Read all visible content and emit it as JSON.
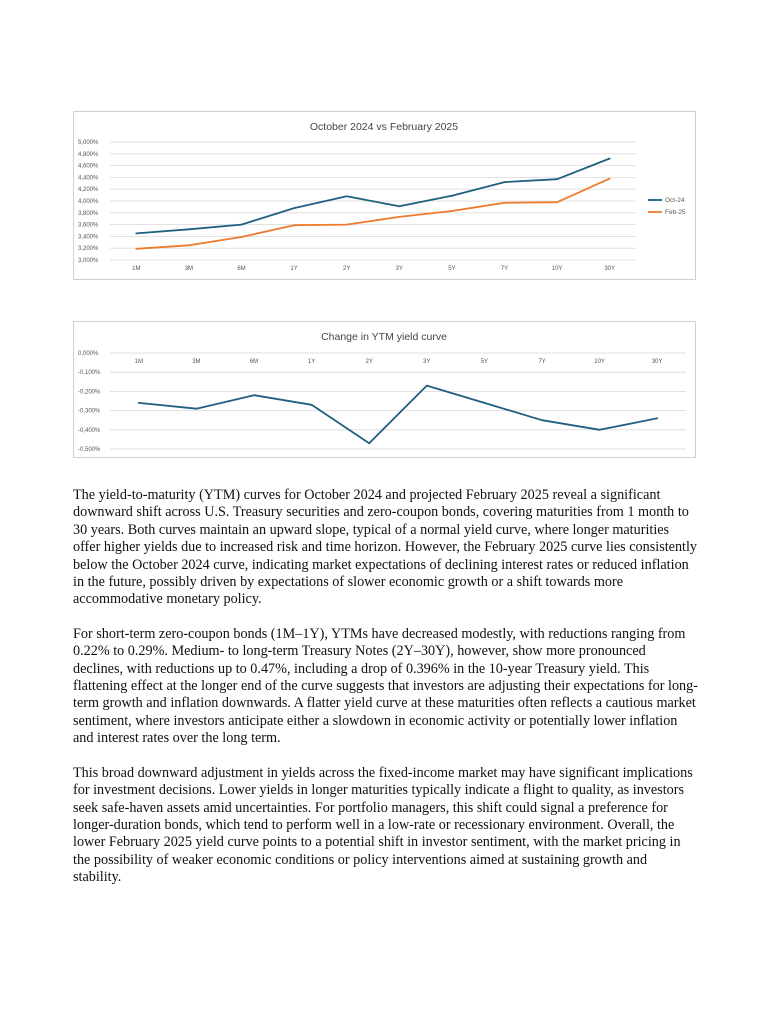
{
  "chart_data": [
    {
      "type": "line",
      "title": "October 2024 vs February 2025",
      "categories": [
        "1M",
        "3M",
        "6M",
        "1Y",
        "2Y",
        "3Y",
        "5Y",
        "7Y",
        "10Y",
        "30Y"
      ],
      "series": [
        {
          "name": "Oct-24",
          "color": "#1f5f7f",
          "values": [
            3.45,
            3.52,
            3.6,
            3.88,
            4.08,
            3.91,
            4.09,
            4.32,
            4.37,
            4.72
          ]
        },
        {
          "name": "Feb-25",
          "color": "#ef7b2e",
          "values": [
            3.19,
            3.25,
            3.39,
            3.59,
            3.6,
            3.73,
            3.83,
            3.97,
            3.98,
            4.38
          ]
        }
      ],
      "ylim": [
        3.0,
        5.0
      ],
      "ytick_labels": [
        "5,000%",
        "4,800%",
        "4,600%",
        "4,400%",
        "4,200%",
        "4,000%",
        "3,800%",
        "3,600%",
        "3,400%",
        "3,200%",
        "3,000%"
      ],
      "grid": true,
      "legend": "right"
    },
    {
      "type": "line",
      "title": "Change in YTM yield curve",
      "categories": [
        "1M",
        "3M",
        "6M",
        "1Y",
        "2Y",
        "3Y",
        "5Y",
        "7Y",
        "10Y",
        "30Y"
      ],
      "series": [
        {
          "color": "#1f5f7f",
          "values": [
            -0.26,
            -0.29,
            -0.22,
            -0.27,
            -0.47,
            -0.17,
            -0.26,
            -0.35,
            -0.4,
            -0.34
          ]
        }
      ],
      "ylim": [
        -0.5,
        0.0
      ],
      "ytick_labels": [
        "0,000%",
        "-0,100%",
        "-0,200%",
        "-0,300%",
        "-0,400%",
        "-0,500%"
      ],
      "grid": true
    }
  ],
  "paragraphs": [
    "The yield-to-maturity (YTM) curves for October 2024 and projected February 2025 reveal a significant downward shift across U.S. Treasury securities and zero-coupon bonds, covering maturities from 1 month to 30 years. Both curves maintain an upward slope, typical of a normal yield curve, where longer maturities offer higher yields due to increased risk and time horizon. However, the February 2025 curve lies consistently below the October 2024 curve, indicating market expectations of declining interest rates or reduced inflation in the future, possibly driven by expectations of slower economic growth or a shift towards more accommodative monetary policy.",
    "For short-term zero-coupon bonds (1M–1Y), YTMs have decreased modestly, with reductions ranging from 0.22% to 0.29%. Medium- to long-term Treasury Notes (2Y–30Y), however, show more pronounced declines, with reductions up to 0.47%, including a drop of 0.396% in the 10-year Treasury yield. This flattening effect at the longer end of the curve suggests that investors are adjusting their expectations for long-term growth and inflation downwards. A flatter yield curve at these maturities often reflects a cautious market sentiment, where investors anticipate either a slowdown in economic activity or potentially lower inflation and interest rates over the long term.",
    "This broad downward adjustment in yields across the fixed-income market may have significant implications for investment decisions. Lower yields in longer maturities typically indicate a flight to quality, as investors seek safe-haven assets amid uncertainties. For portfolio managers, this shift could signal a preference for longer-duration bonds, which tend to perform well in a low-rate or recessionary environment. Overall, the lower February 2025 yield curve points to a potential shift in investor sentiment, with the market pricing in the possibility of weaker economic conditions or policy interventions aimed at sustaining growth and stability."
  ]
}
